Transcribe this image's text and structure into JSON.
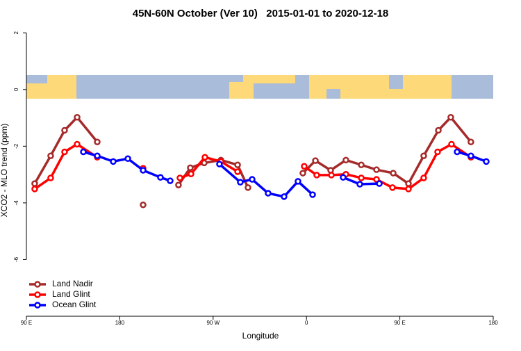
{
  "chart_data": {
    "type": "line",
    "title": "45N-60N October (Ver 10)   2015-01-01 to 2020-12-18",
    "xlabel": "Longitude",
    "ylabel": "XCO2 - MLO trend (ppm)",
    "xlim": [
      90,
      540
    ],
    "ylim": [
      -8,
      2.3
    ],
    "xticks": [
      {
        "value": 90,
        "label": "90 E"
      },
      180,
      {
        "value": 270,
        "label": "90 W"
      },
      {
        "value": 360,
        "label": "0"
      },
      {
        "value": 450,
        "label": "90 E"
      },
      {
        "value": 540,
        "label": "180"
      }
    ],
    "yticks": [
      2,
      0,
      -2,
      -4,
      -6
    ],
    "legend": "bottom-left",
    "series": [
      {
        "name": "Land Nadir",
        "color": "#a52a2a",
        "x": [
          98.0,
          113.4,
          126.8,
          138.9,
          158.3,
          null,
          202.5,
          null,
          236.6,
          248.0,
          261.4,
          277.5,
          293.6,
          303.6,
          null,
          356.5,
          368.6,
          383.3,
          398.0,
          412.8,
          427.5,
          443.6,
          458.3,
          473.0,
          487.1,
          499.1,
          518.5
        ],
        "values": [
          -3.32,
          -2.34,
          -1.44,
          -0.98,
          -1.85,
          null,
          -4.07,
          null,
          -3.37,
          -2.76,
          -2.59,
          -2.49,
          -2.66,
          -3.46,
          null,
          -2.95,
          -2.51,
          -2.85,
          -2.49,
          -2.66,
          -2.83,
          -2.95,
          -3.32,
          -2.34,
          -1.44,
          -0.98,
          -1.85
        ]
      },
      {
        "name": "Land Glint",
        "color": "#ff0000",
        "x": [
          98.0,
          113.4,
          126.8,
          138.9,
          158.3,
          null,
          202.5,
          null,
          238.0,
          248.7,
          262.1,
          277.5,
          293.6,
          null,
          357.8,
          369.9,
          384.0,
          398.0,
          412.8,
          427.5,
          442.9,
          458.3,
          473.0,
          486.4,
          499.8,
          518.5
        ],
        "values": [
          -3.51,
          -3.12,
          -2.2,
          -1.93,
          -2.39,
          null,
          -2.78,
          null,
          -3.12,
          -2.98,
          -2.39,
          -2.54,
          -2.9,
          null,
          -2.71,
          -3.02,
          -3.02,
          -2.99,
          -3.12,
          -3.17,
          -3.46,
          -3.51,
          -3.12,
          -2.2,
          -1.93,
          -2.39
        ]
      },
      {
        "name": "Ocean Glint",
        "color": "#0000ff",
        "x": [
          144.9,
          158.3,
          173.7,
          187.8,
          202.5,
          219.2,
          228.6,
          null,
          276.1,
          296.2,
          307.6,
          323.0,
          338.4,
          351.8,
          365.9,
          null,
          395.3,
          411.4,
          430.2,
          null,
          505.2,
          518.5,
          533.3
        ],
        "values": [
          -2.2,
          -2.34,
          -2.54,
          -2.44,
          -2.85,
          -3.1,
          -3.22,
          null,
          -2.63,
          -3.27,
          -3.17,
          -3.66,
          -3.78,
          -3.24,
          -3.71,
          null,
          -3.1,
          -3.34,
          -3.32,
          null,
          -2.2,
          -2.34,
          -2.54
        ]
      }
    ]
  }
}
